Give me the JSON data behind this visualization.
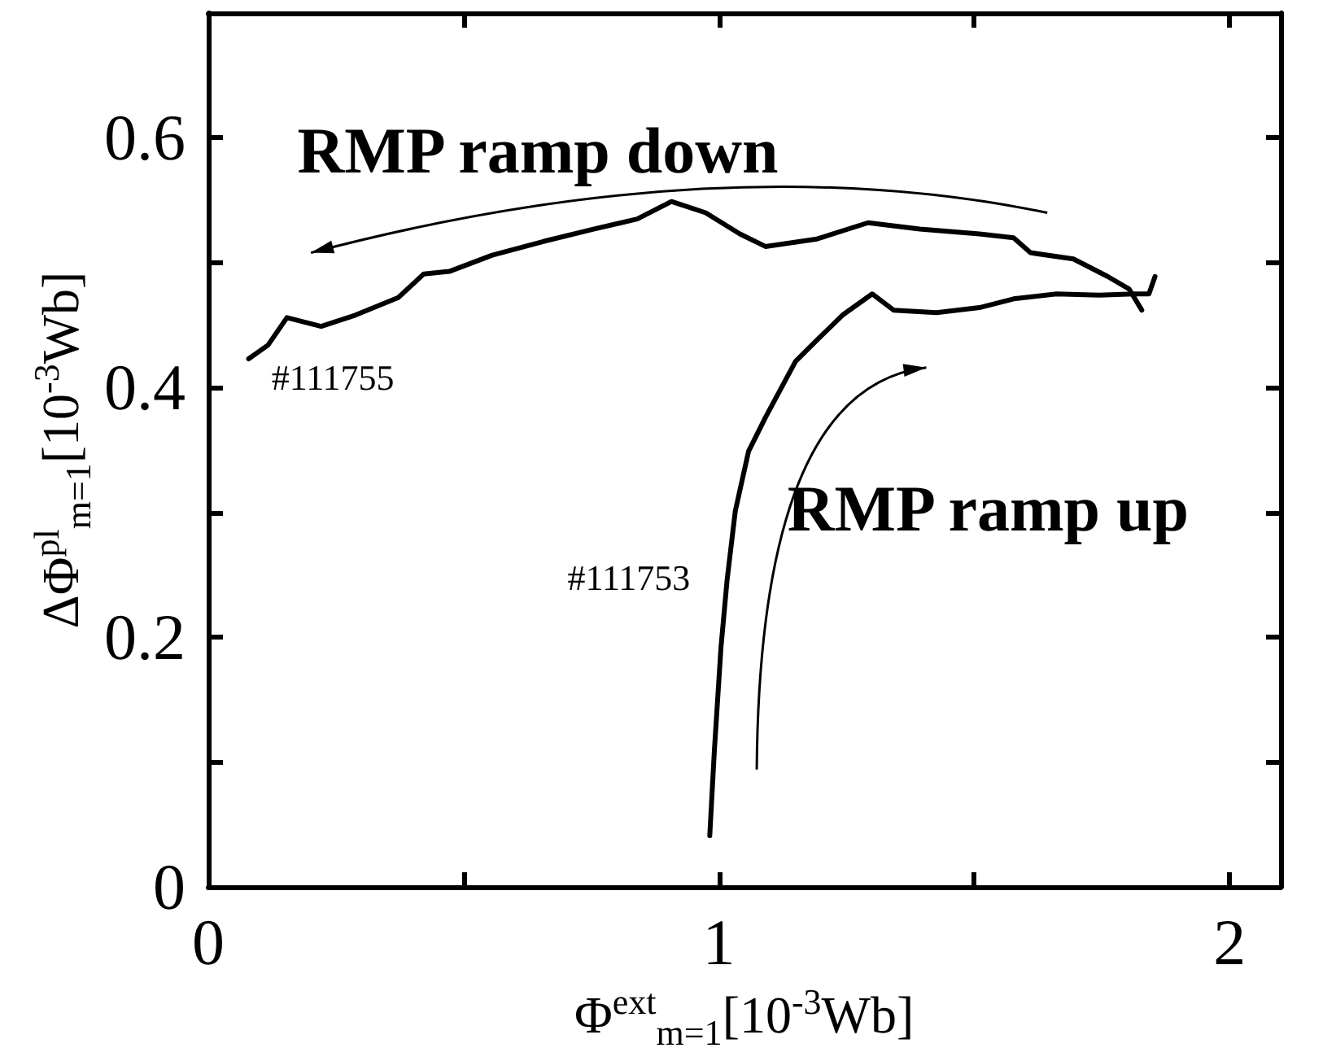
{
  "chart_data": {
    "type": "line",
    "xlabel": "Φ$^{ext}$$_{m=1}$[10$^{-3}$Wb]",
    "ylabel": "ΔΦ$^{pl}$$_{m=1}$[10$^{-3}$Wb]",
    "xlim": [
      0,
      2.1
    ],
    "ylim": [
      0,
      0.7
    ],
    "xticks": [
      0,
      {
        "value": 0.5,
        "label": null
      },
      1,
      {
        "value": 1.5,
        "label": null
      },
      2
    ],
    "yticks": [
      0,
      {
        "value": 0.1,
        "label": null
      },
      0.2,
      {
        "value": 0.3,
        "label": null
      },
      0.4,
      {
        "value": 0.5,
        "label": null
      },
      0.6
    ],
    "grid": false,
    "marker": "none",
    "line_style": "solid",
    "series": [
      {
        "color": "#000000",
        "x": [
          0.079,
          0.117,
          0.154,
          0.221,
          0.288,
          0.372,
          0.422,
          0.472,
          0.556,
          0.656,
          0.756,
          0.84,
          0.907,
          0.974,
          1.041,
          1.091,
          1.192,
          1.292,
          1.393,
          1.51,
          1.577,
          1.61,
          1.694,
          1.761,
          1.803,
          1.828
        ],
        "values": [
          0.423,
          0.434,
          0.456,
          0.449,
          0.458,
          0.472,
          0.491,
          0.493,
          0.506,
          0.517,
          0.527,
          0.535,
          0.549,
          0.54,
          0.523,
          0.513,
          0.519,
          0.532,
          0.527,
          0.523,
          0.52,
          0.508,
          0.503,
          0.489,
          0.479,
          0.462
        ]
      },
      {
        "color": "#000000",
        "x": [
          0.982,
          0.991,
          1.004,
          1.016,
          1.032,
          1.058,
          1.091,
          1.15,
          1.192,
          1.242,
          1.3,
          1.342,
          1.426,
          1.51,
          1.577,
          1.661,
          1.745,
          1.812,
          1.842,
          1.854
        ],
        "values": [
          0.041,
          0.109,
          0.192,
          0.246,
          0.301,
          0.349,
          0.376,
          0.421,
          0.438,
          0.458,
          0.475,
          0.462,
          0.46,
          0.464,
          0.471,
          0.475,
          0.474,
          0.475,
          0.475,
          0.489
        ]
      }
    ],
    "annotations": [
      "RMP ramp down",
      "RMP ramp up",
      "#111755",
      "#111753"
    ]
  }
}
